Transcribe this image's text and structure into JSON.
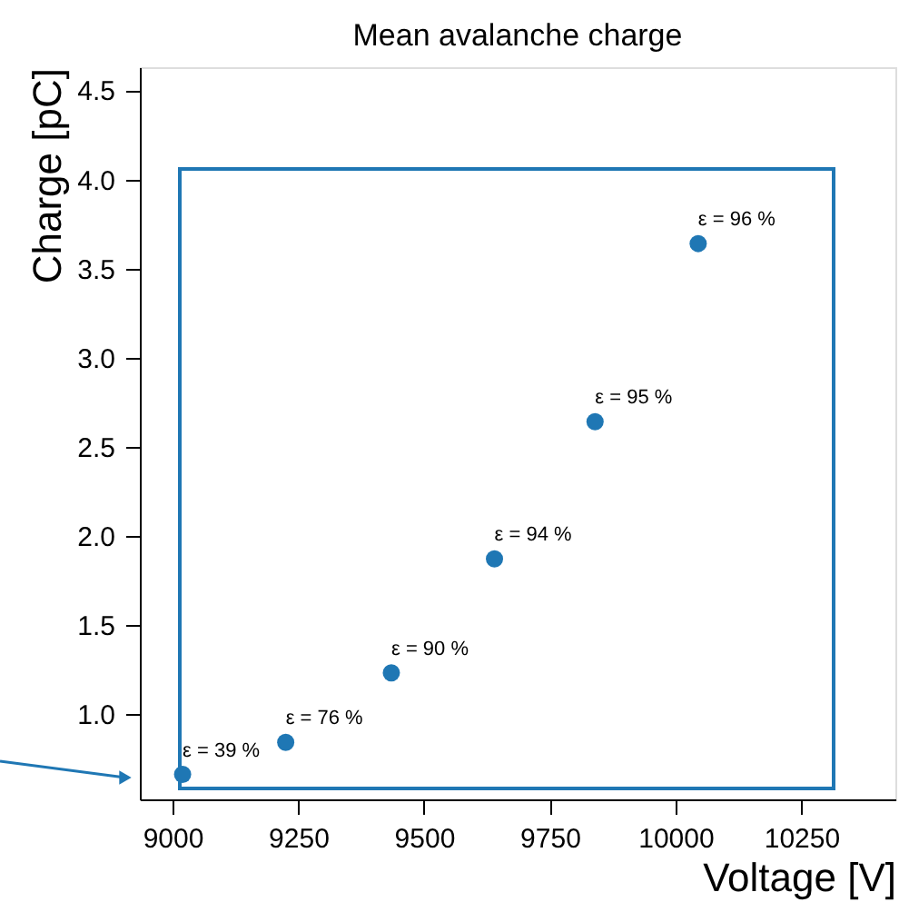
{
  "chart_data": {
    "type": "scatter",
    "title": "Mean avalanche charge",
    "xlabel": "Voltage [V]",
    "ylabel": "Charge [pC]",
    "x": [
      9020,
      9225,
      9435,
      9640,
      9840,
      10045
    ],
    "series": [
      {
        "color": "#1f77b4",
        "values": [
          0.66,
          0.84,
          1.23,
          1.87,
          2.64,
          3.64
        ]
      }
    ],
    "xlim": [
      8935,
      10437
    ],
    "ylim": [
      0.52,
      4.63
    ],
    "xticks": [
      9000,
      9250,
      9500,
      9750,
      10000,
      10250
    ],
    "yticks": [
      {
        "value": 1,
        "label": "1.0"
      },
      {
        "value": 1.5,
        "label": "1.5"
      },
      {
        "value": 2,
        "label": "2.0"
      },
      {
        "value": 2.5,
        "label": "2.5"
      },
      {
        "value": 3,
        "label": "3.0"
      },
      {
        "value": 3.5,
        "label": "3.5"
      },
      {
        "value": 4,
        "label": "4.0"
      },
      {
        "value": 4.5,
        "label": "4.5"
      }
    ],
    "annotations": [
      {
        "text": "ε = 39 %",
        "x": 9020,
        "y": 0.66
      },
      {
        "text": "ε = 76 %",
        "x": 9225,
        "y": 0.84
      },
      {
        "text": "ε = 90 %",
        "x": 9435,
        "y": 1.23
      },
      {
        "text": "ε = 94 %",
        "x": 9640,
        "y": 1.87
      },
      {
        "text": "ε = 95 %",
        "x": 9840,
        "y": 2.64
      },
      {
        "text": "ε = 96 %",
        "x": 10045,
        "y": 3.64
      }
    ],
    "grid": false
  }
}
